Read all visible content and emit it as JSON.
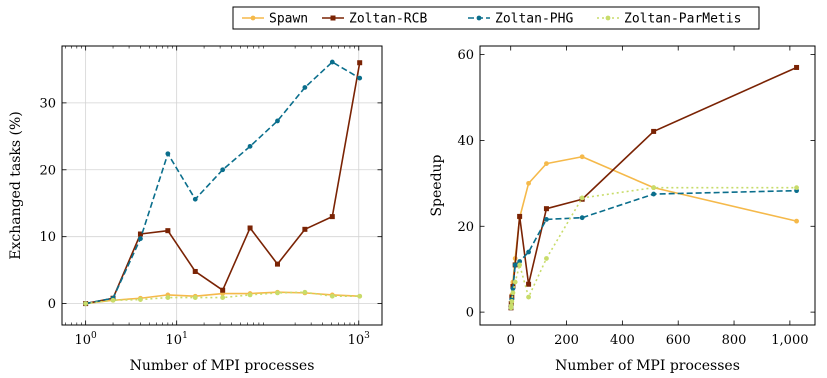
{
  "legend": {
    "placement": "top-center",
    "entries": [
      {
        "name": "Spawn",
        "color": "#f5b94a",
        "marker": "circle",
        "dash": "solid"
      },
      {
        "name": "Zoltan-RCB",
        "color": "#7a2304",
        "marker": "square",
        "dash": "solid"
      },
      {
        "name": "Zoltan-PHG",
        "color": "#0a6e8c",
        "marker": "circle",
        "dash": "dashed"
      },
      {
        "name": "Zoltan-ParMetis",
        "color": "#c8dc6a",
        "marker": "circle",
        "dash": "dotted"
      }
    ]
  },
  "chart_data": [
    {
      "type": "line",
      "xscale": "log",
      "xlabel": "Number of MPI processes",
      "ylabel": "Exchanged tasks (%)",
      "xlim": [
        0.55,
        1800
      ],
      "ylim": [
        -3.2,
        38.5
      ],
      "xticks": [
        {
          "value": 1,
          "base": "10",
          "exp": "0"
        },
        {
          "value": 10,
          "base": "10",
          "exp": "1"
        },
        {
          "value": 1000,
          "base": "10",
          "exp": "3"
        }
      ],
      "yticks": [
        0,
        10,
        20,
        30
      ],
      "grid": true,
      "x": [
        1,
        2,
        4,
        8,
        16,
        32,
        64,
        128,
        256,
        512,
        1024
      ],
      "series": [
        {
          "name": "Spawn",
          "values": [
            0,
            0.5,
            0.8,
            1.3,
            1.1,
            1.5,
            1.5,
            1.7,
            1.6,
            1.3,
            1.1
          ]
        },
        {
          "name": "Zoltan-RCB",
          "values": [
            0,
            0.8,
            10.4,
            10.9,
            4.8,
            2.0,
            11.3,
            5.9,
            11.1,
            13.0,
            36.0
          ]
        },
        {
          "name": "Zoltan-PHG",
          "values": [
            0,
            0.8,
            9.7,
            22.4,
            15.6,
            20.0,
            23.5,
            27.3,
            32.3,
            36.1,
            33.7
          ]
        },
        {
          "name": "Zoltan-ParMetis",
          "values": [
            0,
            0.5,
            0.6,
            0.9,
            0.9,
            0.9,
            1.3,
            1.6,
            1.7,
            1.1,
            1.1
          ]
        }
      ]
    },
    {
      "type": "line",
      "xscale": "linear",
      "xlabel": "Number of MPI processes",
      "ylabel": "Speedup",
      "xlim": [
        -110,
        1090
      ],
      "ylim": [
        -3,
        62
      ],
      "xticks": [
        {
          "value": 0,
          "label": "0"
        },
        {
          "value": 200,
          "label": "200"
        },
        {
          "value": 400,
          "label": "400"
        },
        {
          "value": 600,
          "label": "600"
        },
        {
          "value": 800,
          "label": "800"
        },
        {
          "value": 1000,
          "label": "1,000"
        }
      ],
      "yticks": [
        0,
        20,
        40,
        60
      ],
      "grid": false,
      "x": [
        1,
        2,
        4,
        8,
        16,
        32,
        64,
        128,
        256,
        512,
        1024
      ],
      "series": [
        {
          "name": "Spawn",
          "values": [
            1,
            2,
            4,
            7,
            12.5,
            22,
            30,
            34.6,
            36.2,
            29,
            21.2
          ]
        },
        {
          "name": "Zoltan-RCB",
          "values": [
            1,
            2,
            3.5,
            6,
            11,
            22.3,
            6.5,
            24.1,
            26.3,
            42.1,
            57
          ]
        },
        {
          "name": "Zoltan-PHG",
          "values": [
            1,
            1.5,
            3,
            5.5,
            11,
            11.8,
            14,
            21.6,
            22,
            27.5,
            28.3
          ]
        },
        {
          "name": "Zoltan-ParMetis",
          "values": [
            1,
            1.5,
            2.5,
            4.5,
            7,
            11,
            3.5,
            12.5,
            26.6,
            29,
            29
          ]
        }
      ]
    }
  ]
}
